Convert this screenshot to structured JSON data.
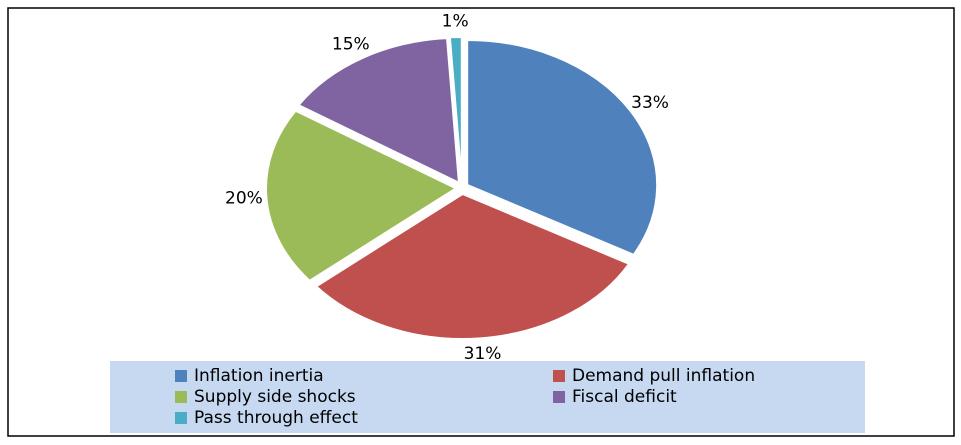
{
  "chart_data": {
    "type": "pie",
    "categories": [
      "Inflation inertia",
      "Demand pull inflation",
      "Supply side shocks",
      "Fiscal deficit",
      "Pass through effect"
    ],
    "values": [
      33,
      31,
      20,
      15,
      1
    ],
    "value_labels": [
      "33%",
      "31%",
      "20%",
      "15%",
      "1%"
    ],
    "colors": [
      "#4f81bd",
      "#c0504d",
      "#9bbb59",
      "#8064a2",
      "#4bacc6"
    ]
  }
}
